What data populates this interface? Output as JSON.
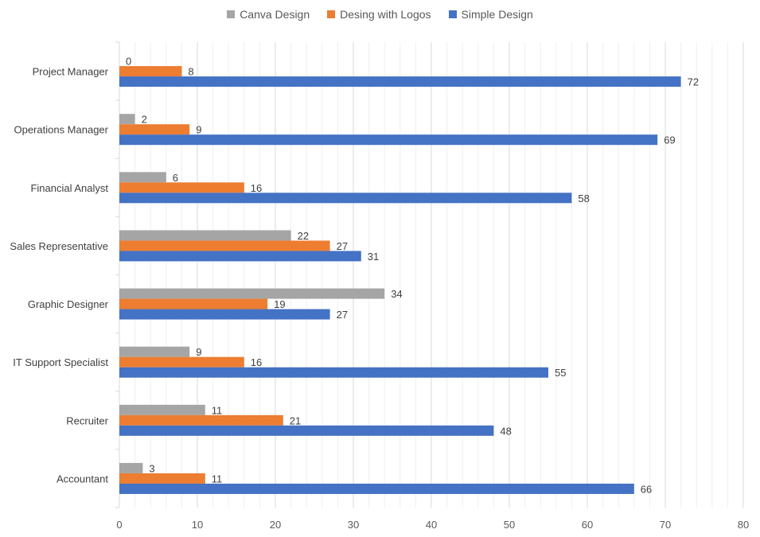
{
  "chart_data": {
    "type": "bar",
    "orientation": "horizontal",
    "categories": [
      "Project Manager",
      "Operations Manager",
      "Financial Analyst",
      "Sales Representative",
      "Graphic Designer",
      "IT Support Specialist",
      "Recruiter",
      "Accountant"
    ],
    "series": [
      {
        "name": "Canva Design",
        "color": "#a5a5a5",
        "values": [
          0,
          2,
          6,
          22,
          34,
          9,
          11,
          3
        ]
      },
      {
        "name": "Desing with Logos",
        "color": "#ed7d31",
        "values": [
          8,
          9,
          16,
          27,
          19,
          16,
          21,
          11
        ]
      },
      {
        "name": "Simple Design",
        "color": "#4472c4",
        "values": [
          72,
          69,
          58,
          31,
          27,
          55,
          48,
          66
        ]
      }
    ],
    "xlim": [
      0,
      80
    ],
    "xticks": [
      0,
      10,
      20,
      30,
      40,
      50,
      60,
      70,
      80
    ],
    "grid": true,
    "legend_position": "top",
    "data_labels": true
  }
}
